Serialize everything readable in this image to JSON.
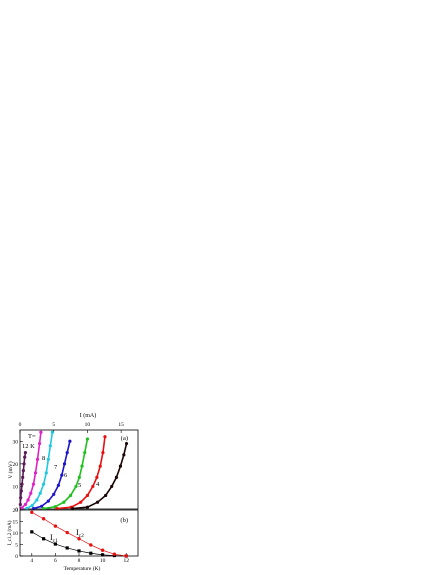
{
  "chart_data": [
    {
      "panel_label": "(a)",
      "type": "scatter",
      "title": "",
      "xlabel": "I (mA)",
      "ylabel": "V (mV)",
      "xlim": [
        0,
        17.5
      ],
      "ylim": [
        0,
        35
      ],
      "xticks": [
        0,
        5,
        10,
        15
      ],
      "yticks": [
        0,
        10,
        20,
        30
      ],
      "x_axis_position": "top",
      "curve_labels": [
        "T=",
        "12 K",
        "8",
        "7",
        "6",
        "5",
        "4"
      ],
      "series": [
        {
          "label": "12 K",
          "color": "#5a1a5a",
          "x": [
            0.05,
            0.1,
            0.2,
            0.3,
            0.4,
            0.5,
            0.6,
            0.7,
            0.8
          ],
          "y": [
            2,
            5,
            8,
            11,
            14,
            17,
            20,
            23,
            25
          ]
        },
        {
          "label": "8",
          "color": "#e020c8",
          "x": [
            0.3,
            0.8,
            1.2,
            1.6,
            2.0,
            2.3,
            2.6,
            2.9,
            3.1
          ],
          "y": [
            0.5,
            2,
            4,
            7,
            11,
            16,
            22,
            29,
            34
          ]
        },
        {
          "label": "7",
          "color": "#20c8e0",
          "x": [
            1.0,
            1.8,
            2.5,
            3.0,
            3.5,
            3.9,
            4.2,
            4.5,
            4.8
          ],
          "y": [
            0.3,
            1.5,
            4,
            7,
            11,
            16,
            22,
            28,
            34
          ]
        },
        {
          "label": "6",
          "color": "#1c14c8",
          "x": [
            2.0,
            3.2,
            4.2,
            5.0,
            5.7,
            6.2,
            6.6,
            7.0,
            7.4
          ],
          "y": [
            0.2,
            1.2,
            3.5,
            6.5,
            10.5,
            15,
            20,
            25,
            30
          ]
        },
        {
          "label": "5",
          "color": "#20c020",
          "x": [
            3.5,
            5.2,
            6.5,
            7.5,
            8.3,
            8.8,
            9.2,
            9.6,
            10.0
          ],
          "y": [
            0.2,
            1.0,
            3,
            6,
            10,
            14,
            19,
            25,
            31
          ]
        },
        {
          "label": "4",
          "color": "#e81010",
          "x": [
            5.5,
            7.6,
            9.0,
            10.0,
            10.8,
            11.4,
            11.9,
            12.3,
            12.6
          ],
          "y": [
            0.2,
            0.8,
            3,
            6,
            10,
            14,
            19,
            25,
            32
          ]
        },
        {
          "label": "",
          "color": "#1a0606",
          "x": [
            7.8,
            10.0,
            11.5,
            12.7,
            13.6,
            14.3,
            14.9,
            15.4,
            15.8
          ],
          "y": [
            0.2,
            0.8,
            3,
            6,
            10,
            14,
            19,
            24,
            29
          ]
        }
      ]
    },
    {
      "panel_label": "(b)",
      "type": "line",
      "title": "",
      "xlabel": "Temperature (K)",
      "ylabel": "I_c1,2 (mA)",
      "xlim": [
        3,
        13
      ],
      "ylim": [
        0,
        20
      ],
      "xticks": [
        4,
        6,
        8,
        10,
        12
      ],
      "yticks": [
        0,
        5,
        10,
        15,
        20
      ],
      "series": [
        {
          "name": "I_c1",
          "color": "#000000",
          "marker": "square",
          "x": [
            4,
            5,
            6,
            7,
            8,
            9,
            10,
            11,
            12
          ],
          "y": [
            10.5,
            7.5,
            5.2,
            3.5,
            2.2,
            1.2,
            0.5,
            0.2,
            0.0
          ]
        },
        {
          "name": "I_c2",
          "color": "#e81010",
          "marker": "circle",
          "x": [
            4,
            5,
            6,
            7,
            8,
            9,
            10,
            11,
            12
          ],
          "y": [
            19.0,
            16.2,
            13.0,
            10.2,
            7.5,
            4.8,
            2.5,
            0.8,
            0.0
          ]
        }
      ]
    }
  ]
}
